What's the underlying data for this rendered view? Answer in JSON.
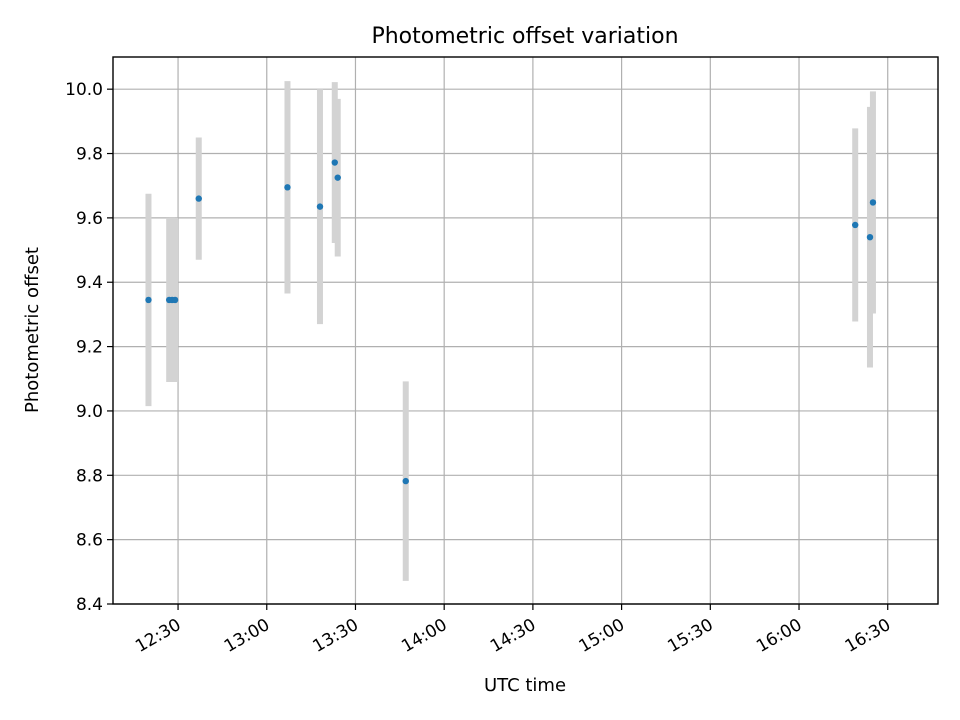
{
  "chart_data": {
    "type": "scatter",
    "title": "Photometric offset variation",
    "xlabel": "UTC time",
    "ylabel": "Photometric offset",
    "xlim": [
      "12:08",
      "16:47"
    ],
    "ylim": [
      8.4,
      10.1
    ],
    "x_ticks": [
      "12:30",
      "13:00",
      "13:30",
      "14:00",
      "14:30",
      "15:00",
      "15:30",
      "16:00",
      "16:30"
    ],
    "y_ticks": [
      8.4,
      8.6,
      8.8,
      9.0,
      9.2,
      9.4,
      9.6,
      9.8,
      10.0
    ],
    "grid": true,
    "point_color": "#1f77b4",
    "errorbar_color": "#d3d3d3",
    "points": [
      {
        "x": "12:20",
        "y": 9.345,
        "yerr": 0.33
      },
      {
        "x": "12:27",
        "y": 9.345,
        "yerr": 0.255
      },
      {
        "x": "12:28",
        "y": 9.345,
        "yerr": 0.255
      },
      {
        "x": "12:29",
        "y": 9.345,
        "yerr": 0.255
      },
      {
        "x": "12:37",
        "y": 9.66,
        "yerr": 0.19
      },
      {
        "x": "13:07",
        "y": 9.695,
        "yerr": 0.33
      },
      {
        "x": "13:18",
        "y": 9.635,
        "yerr": 0.365
      },
      {
        "x": "13:23",
        "y": 9.772,
        "yerr": 0.25
      },
      {
        "x": "13:24",
        "y": 9.725,
        "yerr": 0.245
      },
      {
        "x": "13:47",
        "y": 8.782,
        "yerr": 0.31
      },
      {
        "x": "16:19",
        "y": 9.578,
        "yerr": 0.3
      },
      {
        "x": "16:24",
        "y": 9.54,
        "yerr": 0.405
      },
      {
        "x": "16:25",
        "y": 9.648,
        "yerr": 0.345
      }
    ]
  }
}
